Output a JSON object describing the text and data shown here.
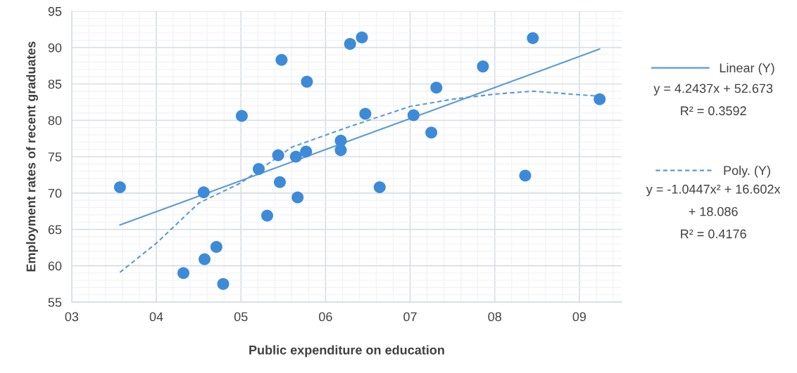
{
  "chart_data": {
    "type": "scatter",
    "xlabel": "Public expenditure on education",
    "ylabel": "Employment rates of recent graduates",
    "xlim": [
      3,
      9.5
    ],
    "ylim": [
      55,
      95
    ],
    "xticks": [
      {
        "value": 3,
        "label": "03"
      },
      {
        "value": 4,
        "label": "04"
      },
      {
        "value": 5,
        "label": "05"
      },
      {
        "value": 6,
        "label": "06"
      },
      {
        "value": 7,
        "label": "07"
      },
      {
        "value": 8,
        "label": "08"
      },
      {
        "value": 9,
        "label": "09"
      }
    ],
    "yticks": [
      55,
      60,
      65,
      70,
      75,
      80,
      85,
      90,
      95
    ],
    "grid": true,
    "legend": "right",
    "series": [
      {
        "color": "#3d8bd8",
        "marker": "circle",
        "x": [
          3.57,
          5.48,
          5.78,
          5.01,
          6.29,
          6.18,
          6.18,
          5.44,
          5.65,
          5.77,
          5.21,
          5.46,
          4.56,
          5.31,
          5.67,
          4.71,
          4.57,
          4.32,
          4.79,
          6.43,
          8.45,
          7.86,
          7.31,
          9.24,
          6.47,
          7.04,
          7.25,
          8.36,
          6.64
        ],
        "values": [
          70.8,
          88.3,
          85.3,
          80.6,
          90.5,
          77.2,
          75.9,
          75.2,
          75.0,
          75.7,
          73.3,
          71.5,
          70.1,
          66.9,
          69.4,
          62.6,
          60.9,
          59.0,
          57.5,
          91.4,
          91.3,
          87.4,
          84.5,
          82.9,
          80.9,
          80.7,
          78.3,
          72.4,
          70.8
        ]
      },
      {
        "type": "line",
        "name": "Linear (Y)",
        "color": "#5b9bd5",
        "marker": "none",
        "line_style": "solid",
        "x": [
          3.57,
          9.24
        ],
        "values": [
          65.6,
          89.8
        ]
      },
      {
        "type": "line",
        "name": "Poly. (Y)",
        "color": "#5b9bd5",
        "marker": "none",
        "line_style": "dashed",
        "x": [
          3.57,
          4.0,
          4.5,
          5.0,
          5.6,
          6.3,
          7.0,
          7.5,
          8.0,
          8.45,
          9.24
        ],
        "values": [
          59.1,
          63.1,
          68.6,
          71.4,
          76.3,
          79.2,
          81.9,
          82.9,
          83.6,
          84.0,
          83.3
        ]
      }
    ],
    "annotations": [
      "y = 4.2437x + 52.673",
      "R² = 0.3592",
      "y = -1.0447x² + 16.602x",
      "+ 18.086",
      "R² = 0.4176"
    ]
  }
}
